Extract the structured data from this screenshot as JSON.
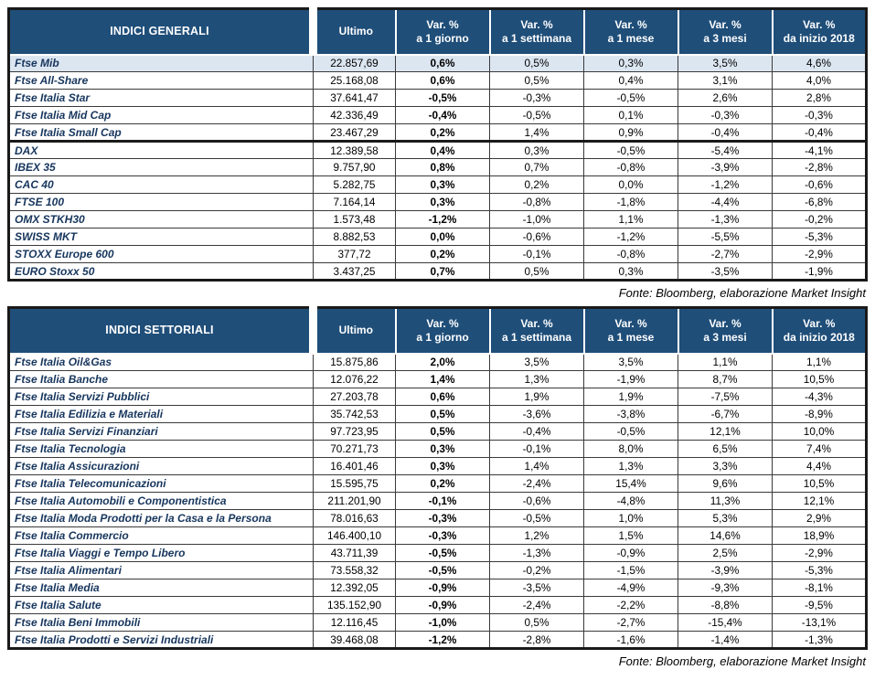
{
  "colors": {
    "header_bg": "#1F4E79",
    "header_text": "#FFFFFF",
    "label_text": "#17365D",
    "highlight_row_bg": "#DCE6F1",
    "border": "#3A3A3A"
  },
  "chart_data": [
    {
      "type": "table",
      "title": "INDICI GENERALI",
      "headers": [
        {
          "l1": "Ultimo",
          "l2": ""
        },
        {
          "l1": "Var. %",
          "l2": "a 1 giorno"
        },
        {
          "l1": "Var. %",
          "l2": "a 1 settimana"
        },
        {
          "l1": "Var. %",
          "l2": "a 1 mese"
        },
        {
          "l1": "Var. %",
          "l2": "a 3 mesi"
        },
        {
          "l1": "Var. %",
          "l2": "da inizio 2018"
        }
      ],
      "rows": [
        {
          "name": "Ftse Mib",
          "ultimo": "22.857,69",
          "d1": "0,6%",
          "w1": "0,5%",
          "m1": "0,3%",
          "m3": "3,5%",
          "ytd": "4,6%",
          "highlight": true
        },
        {
          "name": "Ftse All-Share",
          "ultimo": "25.168,08",
          "d1": "0,6%",
          "w1": "0,5%",
          "m1": "0,4%",
          "m3": "3,1%",
          "ytd": "4,0%"
        },
        {
          "name": "Ftse Italia Star",
          "ultimo": "37.641,47",
          "d1": "-0,5%",
          "w1": "-0,3%",
          "m1": "-0,5%",
          "m3": "2,6%",
          "ytd": "2,8%"
        },
        {
          "name": "Ftse Italia Mid Cap",
          "ultimo": "42.336,49",
          "d1": "-0,4%",
          "w1": "-0,5%",
          "m1": "0,1%",
          "m3": "-0,3%",
          "ytd": "-0,3%"
        },
        {
          "name": "Ftse Italia Small Cap",
          "ultimo": "23.467,29",
          "d1": "0,2%",
          "w1": "1,4%",
          "m1": "0,9%",
          "m3": "-0,4%",
          "ytd": "-0,4%"
        },
        {
          "name": "DAX",
          "ultimo": "12.389,58",
          "d1": "0,4%",
          "w1": "0,3%",
          "m1": "-0,5%",
          "m3": "-5,4%",
          "ytd": "-4,1%",
          "sep": true
        },
        {
          "name": "IBEX 35",
          "ultimo": "9.757,90",
          "d1": "0,8%",
          "w1": "0,7%",
          "m1": "-0,8%",
          "m3": "-3,9%",
          "ytd": "-2,8%"
        },
        {
          "name": "CAC 40",
          "ultimo": "5.282,75",
          "d1": "0,3%",
          "w1": "0,2%",
          "m1": "0,0%",
          "m3": "-1,2%",
          "ytd": "-0,6%"
        },
        {
          "name": "FTSE 100",
          "ultimo": "7.164,14",
          "d1": "0,3%",
          "w1": "-0,8%",
          "m1": "-1,8%",
          "m3": "-4,4%",
          "ytd": "-6,8%"
        },
        {
          "name": "OMX STKH30",
          "ultimo": "1.573,48",
          "d1": "-1,2%",
          "w1": "-1,0%",
          "m1": "1,1%",
          "m3": "-1,3%",
          "ytd": "-0,2%"
        },
        {
          "name": "SWISS MKT",
          "ultimo": "8.882,53",
          "d1": "0,0%",
          "w1": "-0,6%",
          "m1": "-1,2%",
          "m3": "-5,5%",
          "ytd": "-5,3%"
        },
        {
          "name": "STOXX Europe 600",
          "ultimo": "377,72",
          "d1": "0,2%",
          "w1": "-0,1%",
          "m1": "-0,8%",
          "m3": "-2,7%",
          "ytd": "-2,9%"
        },
        {
          "name": "EURO Stoxx 50",
          "ultimo": "3.437,25",
          "d1": "0,7%",
          "w1": "0,5%",
          "m1": "0,3%",
          "m3": "-3,5%",
          "ytd": "-1,9%"
        }
      ],
      "source": "Fonte: Bloomberg, elaborazione Market Insight"
    },
    {
      "type": "table",
      "title": "INDICI SETTORIALI",
      "headers": [
        {
          "l1": "Ultimo",
          "l2": ""
        },
        {
          "l1": "Var. %",
          "l2": "a 1 giorno"
        },
        {
          "l1": "Var. %",
          "l2": "a 1 settimana"
        },
        {
          "l1": "Var. %",
          "l2": "a 1 mese"
        },
        {
          "l1": "Var. %",
          "l2": "a 3 mesi"
        },
        {
          "l1": "Var. %",
          "l2": "da inizio 2018"
        }
      ],
      "rows": [
        {
          "name": "Ftse Italia Oil&Gas",
          "ultimo": "15.875,86",
          "d1": "2,0%",
          "w1": "3,5%",
          "m1": "3,5%",
          "m3": "1,1%",
          "ytd": "1,1%"
        },
        {
          "name": "Ftse Italia Banche",
          "ultimo": "12.076,22",
          "d1": "1,4%",
          "w1": "1,3%",
          "m1": "-1,9%",
          "m3": "8,7%",
          "ytd": "10,5%"
        },
        {
          "name": "Ftse Italia Servizi Pubblici",
          "ultimo": "27.203,78",
          "d1": "0,6%",
          "w1": "1,9%",
          "m1": "1,9%",
          "m3": "-7,5%",
          "ytd": "-4,3%"
        },
        {
          "name": "Ftse Italia Edilizia e Materiali",
          "ultimo": "35.742,53",
          "d1": "0,5%",
          "w1": "-3,6%",
          "m1": "-3,8%",
          "m3": "-6,7%",
          "ytd": "-8,9%"
        },
        {
          "name": "Ftse Italia Servizi Finanziari",
          "ultimo": "97.723,95",
          "d1": "0,5%",
          "w1": "-0,4%",
          "m1": "-0,5%",
          "m3": "12,1%",
          "ytd": "10,0%"
        },
        {
          "name": "Ftse Italia Tecnologia",
          "ultimo": "70.271,73",
          "d1": "0,3%",
          "w1": "-0,1%",
          "m1": "8,0%",
          "m3": "6,5%",
          "ytd": "7,4%"
        },
        {
          "name": "Ftse Italia Assicurazioni",
          "ultimo": "16.401,46",
          "d1": "0,3%",
          "w1": "1,4%",
          "m1": "1,3%",
          "m3": "3,3%",
          "ytd": "4,4%"
        },
        {
          "name": "Ftse Italia Telecomunicazioni",
          "ultimo": "15.595,75",
          "d1": "0,2%",
          "w1": "-2,4%",
          "m1": "15,4%",
          "m3": "9,6%",
          "ytd": "10,5%"
        },
        {
          "name": "Ftse Italia Automobili e Componentistica",
          "ultimo": "211.201,90",
          "d1": "-0,1%",
          "w1": "-0,6%",
          "m1": "-4,8%",
          "m3": "11,3%",
          "ytd": "12,1%"
        },
        {
          "name": "Ftse Italia Moda Prodotti per la Casa e la Persona",
          "ultimo": "78.016,63",
          "d1": "-0,3%",
          "w1": "-0,5%",
          "m1": "1,0%",
          "m3": "5,3%",
          "ytd": "2,9%"
        },
        {
          "name": "Ftse Italia Commercio",
          "ultimo": "146.400,10",
          "d1": "-0,3%",
          "w1": "1,2%",
          "m1": "1,5%",
          "m3": "14,6%",
          "ytd": "18,9%"
        },
        {
          "name": "Ftse Italia Viaggi e Tempo Libero",
          "ultimo": "43.711,39",
          "d1": "-0,5%",
          "w1": "-1,3%",
          "m1": "-0,9%",
          "m3": "2,5%",
          "ytd": "-2,9%"
        },
        {
          "name": "Ftse Italia Alimentari",
          "ultimo": "73.558,32",
          "d1": "-0,5%",
          "w1": "-0,2%",
          "m1": "-1,5%",
          "m3": "-3,9%",
          "ytd": "-5,3%"
        },
        {
          "name": "Ftse Italia Media",
          "ultimo": "12.392,05",
          "d1": "-0,9%",
          "w1": "-3,5%",
          "m1": "-4,9%",
          "m3": "-9,3%",
          "ytd": "-8,1%"
        },
        {
          "name": "Ftse Italia Salute",
          "ultimo": "135.152,90",
          "d1": "-0,9%",
          "w1": "-2,4%",
          "m1": "-2,2%",
          "m3": "-8,8%",
          "ytd": "-9,5%"
        },
        {
          "name": "Ftse Italia Beni Immobili",
          "ultimo": "12.116,45",
          "d1": "-1,0%",
          "w1": "0,5%",
          "m1": "-2,7%",
          "m3": "-15,4%",
          "ytd": "-13,1%"
        },
        {
          "name": "Ftse Italia Prodotti e Servizi Industriali",
          "ultimo": "39.468,08",
          "d1": "-1,2%",
          "w1": "-2,8%",
          "m1": "-1,6%",
          "m3": "-1,4%",
          "ytd": "-1,3%"
        }
      ],
      "source": "Fonte: Bloomberg, elaborazione Market Insight"
    }
  ]
}
